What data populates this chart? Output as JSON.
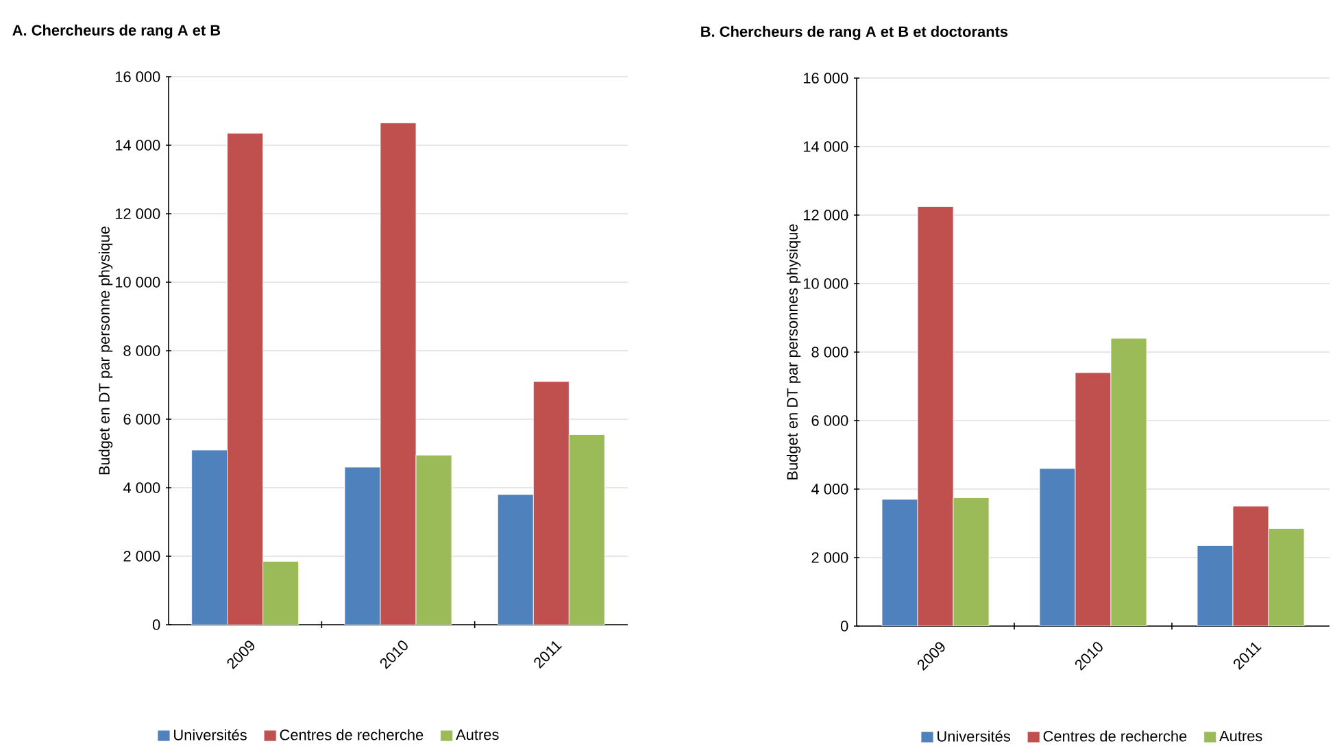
{
  "chart_data": [
    {
      "type": "bar",
      "title": "A. Chercheurs de rang A et B",
      "ylabel": "Budget en DT par personne physique",
      "categories": [
        "2009",
        "2010",
        "2011"
      ],
      "series": [
        {
          "name": "Universités",
          "color": "#4f81bd",
          "values": [
            5100,
            4600,
            3800
          ]
        },
        {
          "name": "Centres de recherche",
          "color": "#c0504d",
          "values": [
            14350,
            14650,
            7100
          ]
        },
        {
          "name": "Autres",
          "color": "#9bbb59",
          "values": [
            1850,
            4950,
            5550
          ]
        }
      ],
      "ylim": [
        0,
        16000
      ],
      "yticks": [
        0,
        {
          "value": 2000,
          "label": "2 000"
        },
        {
          "value": 4000,
          "label": "4 000"
        },
        {
          "value": 6000,
          "label": "6 000"
        },
        {
          "value": 8000,
          "label": "8 000"
        },
        {
          "value": 10000,
          "label": "10 000"
        },
        {
          "value": 12000,
          "label": "12 000"
        },
        {
          "value": 14000,
          "label": "14 000"
        },
        {
          "value": 16000,
          "label": "16 000"
        }
      ],
      "grid": "y",
      "legend": "bottom"
    },
    {
      "type": "bar",
      "title": "B. Chercheurs de rang A et B et doctorants",
      "ylabel": "Budget en DT par personnes physique",
      "categories": [
        "2009",
        "2010",
        "2011"
      ],
      "series": [
        {
          "name": "Universités",
          "color": "#4f81bd",
          "values": [
            3700,
            4600,
            2350
          ]
        },
        {
          "name": "Centres de recherche",
          "color": "#c0504d",
          "values": [
            12250,
            7400,
            3500
          ]
        },
        {
          "name": "Autres",
          "color": "#9bbb59",
          "values": [
            3750,
            8400,
            2850
          ]
        }
      ],
      "ylim": [
        0,
        16000
      ],
      "yticks": [
        0,
        {
          "value": 2000,
          "label": "2 000"
        },
        {
          "value": 4000,
          "label": "4 000"
        },
        {
          "value": 6000,
          "label": "6 000"
        },
        {
          "value": 8000,
          "label": "8 000"
        },
        {
          "value": 10000,
          "label": "10 000"
        },
        {
          "value": 12000,
          "label": "12 000"
        },
        {
          "value": 14000,
          "label": "14 000"
        },
        {
          "value": 16000,
          "label": "16 000"
        }
      ],
      "grid": "y",
      "legend": "bottom"
    }
  ]
}
